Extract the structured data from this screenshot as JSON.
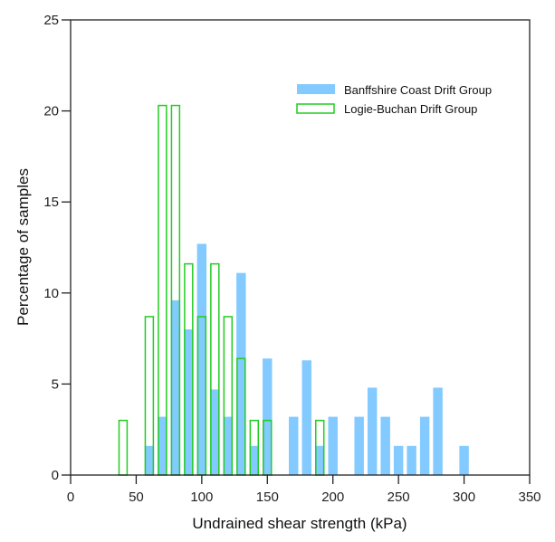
{
  "chart_data": {
    "type": "bar",
    "title": "",
    "xlabel": "Undrained shear strength (kPa)",
    "ylabel": "Percentage of samples",
    "xlim": [
      0,
      350
    ],
    "ylim": [
      0,
      25
    ],
    "xticks": [
      0,
      50,
      100,
      150,
      200,
      250,
      300,
      350
    ],
    "yticks": [
      0,
      5,
      10,
      15,
      20,
      25
    ],
    "bin_width": 10,
    "grid": false,
    "legend_position": "top-right",
    "series": [
      {
        "name": "Banffshire Coast Drift Group",
        "style": "filled",
        "color": "#82CAFF",
        "x": [
          60,
          70,
          80,
          90,
          100,
          110,
          120,
          130,
          140,
          150,
          170,
          180,
          190,
          200,
          220,
          230,
          240,
          250,
          260,
          270,
          280,
          300
        ],
        "values": [
          1.6,
          3.2,
          9.6,
          8.0,
          12.7,
          4.7,
          3.2,
          11.1,
          1.6,
          6.4,
          3.2,
          6.3,
          1.6,
          3.2,
          3.2,
          4.8,
          3.2,
          1.6,
          1.6,
          3.2,
          4.8,
          1.6
        ]
      },
      {
        "name": "Logie-Buchan Drift Group",
        "style": "outline",
        "color": "#22CC22",
        "x": [
          40,
          60,
          70,
          80,
          90,
          100,
          110,
          120,
          130,
          140,
          150,
          190
        ],
        "values": [
          3.0,
          8.7,
          20.3,
          20.3,
          11.6,
          8.7,
          11.6,
          8.7,
          6.4,
          3.0,
          3.0,
          3.0
        ]
      }
    ]
  }
}
